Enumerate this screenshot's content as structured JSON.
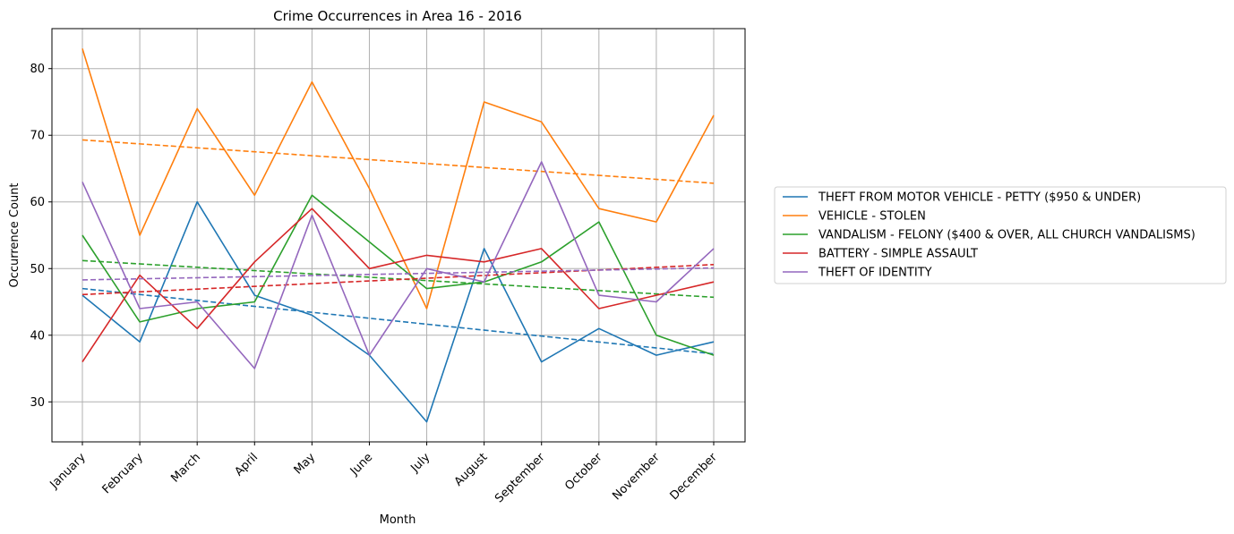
{
  "chart_data": {
    "type": "line",
    "title": "Crime Occurrences in Area 16 - 2016",
    "xlabel": "Month",
    "ylabel": "Occurrence Count",
    "categories": [
      "January",
      "February",
      "March",
      "April",
      "May",
      "June",
      "July",
      "August",
      "September",
      "October",
      "November",
      "December"
    ],
    "ylim": [
      24,
      86
    ],
    "yticks": [
      30,
      40,
      50,
      60,
      70,
      80
    ],
    "grid": true,
    "legend_position": "right, outside plot",
    "series": [
      {
        "name": "THEFT FROM MOTOR VEHICLE - PETTY ($950 & UNDER)",
        "color": "#1f77b4",
        "values": [
          46,
          39,
          60,
          46,
          43,
          37,
          27,
          53,
          36,
          41,
          37,
          39
        ],
        "trend": [
          47.0,
          37.2
        ]
      },
      {
        "name": "VEHICLE - STOLEN",
        "color": "#ff7f0e",
        "values": [
          83,
          55,
          74,
          61,
          78,
          62,
          44,
          75,
          72,
          59,
          57,
          73
        ],
        "trend": [
          69.3,
          62.8
        ]
      },
      {
        "name": "VANDALISM - FELONY ($400 & OVER, ALL CHURCH VANDALISMS)",
        "color": "#2ca02c",
        "values": [
          55,
          42,
          44,
          45,
          61,
          54,
          47,
          48,
          51,
          57,
          40,
          37
        ],
        "trend": [
          51.2,
          45.7
        ]
      },
      {
        "name": "BATTERY - SIMPLE ASSAULT",
        "color": "#d62728",
        "values": [
          36,
          49,
          41,
          51,
          59,
          50,
          52,
          51,
          53,
          44,
          46,
          48
        ],
        "trend": [
          46.1,
          50.6
        ]
      },
      {
        "name": "THEFT OF IDENTITY",
        "color": "#9467bd",
        "values": [
          63,
          44,
          45,
          35,
          58,
          37,
          50,
          48,
          66,
          46,
          45,
          53
        ],
        "trend": [
          48.3,
          50.1
        ]
      }
    ]
  }
}
